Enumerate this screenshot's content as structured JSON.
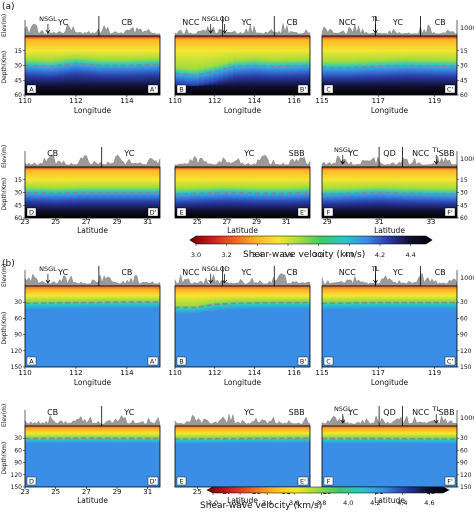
{
  "figure": {
    "parts": [
      {
        "label": "(a)",
        "colorbar": {
          "title": "Shear-wave velocity (km/s)",
          "ticks": [
            "3.0",
            "3.2",
            "3.4",
            "3.6",
            "3.8",
            "4.0",
            "4.2",
            "4.4"
          ],
          "range": [
            3.0,
            4.5
          ]
        },
        "depth_axis": {
          "label": "Depth(Km)",
          "range": [
            0,
            60
          ],
          "ticks": [
            "15",
            "30",
            "45",
            "60"
          ]
        },
        "elev_axis": {
          "label": "Elev(m)",
          "tick": "1000"
        },
        "panels": [
          {
            "id": "A",
            "end": "A'",
            "xlabel": "Longitude",
            "xticks": [
              "110",
              "112",
              "114"
            ],
            "xrange": [
              110,
              115.3
            ],
            "regions": [
              {
                "name": "YC",
                "x": 111.5
              },
              {
                "name": "CB",
                "x": 114.0
              }
            ],
            "boundaries": [
              112.9
            ],
            "arrows": [
              {
                "name": "NSGL",
                "x": 110.9
              }
            ],
            "moho": [
              [
                110,
                30
              ],
              [
                111,
                31
              ],
              [
                112,
                28
              ],
              [
                113,
                30
              ],
              [
                114,
                30
              ],
              [
                115.3,
                29
              ]
            ]
          },
          {
            "id": "B",
            "end": "B'",
            "xlabel": "Longitude",
            "xticks": [
              "110",
              "112",
              "114",
              "116"
            ],
            "xrange": [
              110,
              116.8
            ],
            "regions": [
              {
                "name": "NCC",
                "x": 110.8
              },
              {
                "name": "YC",
                "x": 113.6
              },
              {
                "name": "CB",
                "x": 115.9
              }
            ],
            "boundaries": [
              112.4,
              115.0
            ],
            "arrows": [
              {
                "name": "NSGL",
                "x": 111.8
              },
              {
                "name": "QD",
                "x": 112.5
              }
            ],
            "moho": [
              [
                110,
                38
              ],
              [
                111,
                40
              ],
              [
                112,
                36
              ],
              [
                113,
                31
              ],
              [
                114,
                30
              ],
              [
                115,
                31
              ],
              [
                116.8,
                30
              ]
            ]
          },
          {
            "id": "C",
            "end": "C'",
            "xlabel": "Longitude",
            "xticks": [
              "115",
              "117",
              "119"
            ],
            "xrange": [
              115,
              119.8
            ],
            "regions": [
              {
                "name": "NCC",
                "x": 115.9
              },
              {
                "name": "YC",
                "x": 117.7
              },
              {
                "name": "CB",
                "x": 119.2
              }
            ],
            "boundaries": [
              116.9,
              118.5
            ],
            "arrows": [
              {
                "name": "TL",
                "x": 116.9
              }
            ],
            "moho": [
              [
                115,
                32
              ],
              [
                116,
                32
              ],
              [
                117,
                31
              ],
              [
                118,
                30
              ],
              [
                119.8,
                31
              ]
            ]
          },
          {
            "id": "D",
            "end": "D'",
            "xlabel": "Latitude",
            "xticks": [
              "23",
              "25",
              "27",
              "29",
              "31"
            ],
            "xrange": [
              23,
              31.8
            ],
            "regions": [
              {
                "name": "CB",
                "x": 24.8
              },
              {
                "name": "YC",
                "x": 29.8
              }
            ],
            "boundaries": [
              28.0
            ],
            "arrows": [],
            "moho": [
              [
                23,
                30
              ],
              [
                25,
                31
              ],
              [
                27,
                30
              ],
              [
                29,
                30
              ],
              [
                31.8,
                30
              ]
            ]
          },
          {
            "id": "E",
            "end": "E'",
            "xlabel": "Latitude",
            "xticks": [
              "25",
              "27",
              "29",
              "31"
            ],
            "xrange": [
              23.5,
              32.6
            ],
            "regions": [
              {
                "name": "YC",
                "x": 28.5
              },
              {
                "name": "SBB",
                "x": 31.7
              }
            ],
            "boundaries": [],
            "arrows": [],
            "moho": [
              [
                23.5,
                32
              ],
              [
                25,
                31
              ],
              [
                27,
                30
              ],
              [
                29,
                31
              ],
              [
                31,
                31
              ],
              [
                32.6,
                30
              ]
            ]
          },
          {
            "id": "F",
            "end": "F'",
            "xlabel": "Latitude",
            "xticks": [
              "29",
              "31",
              "33"
            ],
            "xrange": [
              28.8,
              34.0
            ],
            "regions": [
              {
                "name": "YC",
                "x": 30.0
              },
              {
                "name": "QD",
                "x": 31.4
              },
              {
                "name": "NCC",
                "x": 32.6
              },
              {
                "name": "SBB",
                "x": 33.6
              }
            ],
            "boundaries": [
              31.0,
              31.9
            ],
            "arrows": [
              {
                "name": "NSGL",
                "x": 29.6
              },
              {
                "name": "TL",
                "x": 33.2
              }
            ],
            "moho": [
              [
                28.8,
                32
              ],
              [
                30,
                31
              ],
              [
                31,
                30
              ],
              [
                32,
                31
              ],
              [
                34,
                32
              ]
            ]
          }
        ]
      },
      {
        "label": "(b)",
        "colorbar": {
          "title": "Shear-wave velocity (km/s)",
          "ticks": [
            "3.0",
            "3.2",
            "3.4",
            "3.6",
            "3.8",
            "4.0",
            "4.2",
            "4.4",
            "4.6"
          ],
          "range": [
            3.0,
            4.7
          ]
        },
        "depth_axis": {
          "label": "Depth(Km)",
          "range": [
            0,
            150
          ],
          "ticks": [
            "30",
            "60",
            "90",
            "120",
            "150"
          ]
        },
        "elev_axis": {
          "label": "Elev(m)",
          "tick": "1000"
        },
        "panels": [
          {
            "id": "A",
            "end": "A'",
            "xlabel": "Longitude",
            "xticks": [
              "110",
              "112",
              "114"
            ],
            "xrange": [
              110,
              115.3
            ],
            "regions": [
              {
                "name": "YC",
                "x": 111.5
              },
              {
                "name": "CB",
                "x": 114.0
              }
            ],
            "boundaries": [
              112.9
            ],
            "arrows": [
              {
                "name": "NSGL",
                "x": 110.9
              }
            ],
            "moho": [
              [
                110,
                32
              ],
              [
                112,
                31
              ],
              [
                114,
                30
              ],
              [
                115.3,
                30
              ]
            ]
          },
          {
            "id": "B",
            "end": "B'",
            "xlabel": "Longitude",
            "xticks": [
              "110",
              "112",
              "114",
              "116"
            ],
            "xrange": [
              110,
              116.8
            ],
            "regions": [
              {
                "name": "NCC",
                "x": 110.8
              },
              {
                "name": "YC",
                "x": 113.6
              },
              {
                "name": "CB",
                "x": 115.9
              }
            ],
            "boundaries": [
              112.4,
              115.0
            ],
            "arrows": [
              {
                "name": "NSGL",
                "x": 111.8
              },
              {
                "name": "QD",
                "x": 112.5
              }
            ],
            "moho": [
              [
                110,
                40
              ],
              [
                111,
                40
              ],
              [
                112,
                34
              ],
              [
                113,
                32
              ],
              [
                115,
                31
              ],
              [
                116.8,
                31
              ]
            ]
          },
          {
            "id": "C",
            "end": "C'",
            "xlabel": "Longitude",
            "xticks": [
              "115",
              "117",
              "119"
            ],
            "xrange": [
              115,
              119.8
            ],
            "regions": [
              {
                "name": "NCC",
                "x": 115.9
              },
              {
                "name": "YC",
                "x": 117.7
              },
              {
                "name": "CB",
                "x": 119.2
              }
            ],
            "boundaries": [
              116.9,
              118.5
            ],
            "arrows": [
              {
                "name": "TL",
                "x": 116.9
              }
            ],
            "moho": [
              [
                115,
                32
              ],
              [
                117,
                31
              ],
              [
                119.8,
                31
              ]
            ]
          },
          {
            "id": "D",
            "end": "D'",
            "xlabel": "Latitude",
            "xticks": [
              "23",
              "25",
              "27",
              "29",
              "31"
            ],
            "xrange": [
              23,
              31.8
            ],
            "regions": [
              {
                "name": "CB",
                "x": 24.8
              },
              {
                "name": "YC",
                "x": 29.8
              }
            ],
            "boundaries": [
              28.0
            ],
            "arrows": [],
            "moho": [
              [
                23,
                31
              ],
              [
                27,
                30
              ],
              [
                31.8,
                31
              ]
            ]
          },
          {
            "id": "E",
            "end": "E'",
            "xlabel": "Latitude",
            "xticks": [
              "25",
              "27",
              "29",
              "31"
            ],
            "xrange": [
              23.5,
              32.6
            ],
            "regions": [
              {
                "name": "YC",
                "x": 28.5
              },
              {
                "name": "SBB",
                "x": 31.7
              }
            ],
            "boundaries": [],
            "arrows": [],
            "moho": [
              [
                23.5,
                32
              ],
              [
                28,
                31
              ],
              [
                32.6,
                30
              ]
            ]
          },
          {
            "id": "F",
            "end": "F'",
            "xlabel": "Latitude",
            "xticks": [
              "29",
              "31",
              "33"
            ],
            "xrange": [
              28.8,
              34.0
            ],
            "regions": [
              {
                "name": "YC",
                "x": 30.0
              },
              {
                "name": "QD",
                "x": 31.4
              },
              {
                "name": "NCC",
                "x": 32.6
              },
              {
                "name": "SBB",
                "x": 33.6
              }
            ],
            "boundaries": [
              31.0,
              31.9
            ],
            "arrows": [
              {
                "name": "NSGL",
                "x": 29.6
              },
              {
                "name": "TL",
                "x": 33.2
              }
            ],
            "moho": [
              [
                28.8,
                31
              ],
              [
                31,
                31
              ],
              [
                34,
                32
              ]
            ]
          }
        ]
      }
    ]
  },
  "chart_data": {
    "type": "heatmap",
    "subtype": "velocity cross-sections with topography profiles",
    "value_units": "km/s",
    "colormap": [
      "#6e0000",
      "#c81e1e",
      "#f06020",
      "#ffb428",
      "#f5e632",
      "#a0dc3c",
      "#3cc864",
      "#28c8c8",
      "#3a8ee6",
      "#2a3ca8",
      "#101030",
      "#000000"
    ]
  }
}
